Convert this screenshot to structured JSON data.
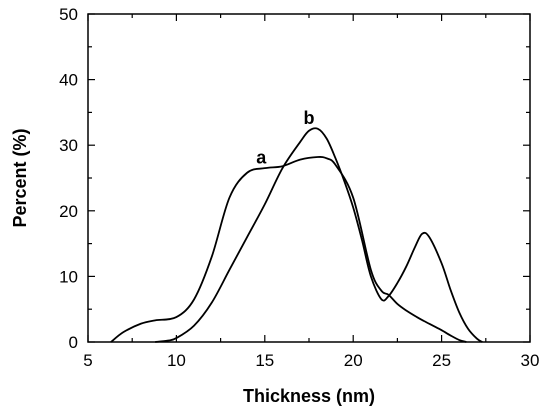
{
  "chart_data": {
    "type": "line",
    "title": "",
    "xlabel": "Thickness (nm)",
    "ylabel": "Percent (%)",
    "xlim": [
      5,
      30
    ],
    "ylim": [
      0,
      50
    ],
    "xticks": [
      5,
      10,
      15,
      20,
      25,
      30
    ],
    "yticks": [
      0,
      10,
      20,
      30,
      40,
      50
    ],
    "grid": false,
    "series": [
      {
        "name": "a",
        "color": "#000000",
        "label_at": [
          14.8,
          27.2
        ],
        "x": [
          6.3,
          7,
          8,
          8.8,
          10,
          11,
          12,
          13,
          14,
          15,
          16,
          17,
          18,
          18.5,
          19,
          20,
          21,
          21.6,
          22,
          22.5,
          23,
          23.6,
          24,
          24.5,
          25,
          25.5,
          26,
          26.4
        ],
        "y": [
          0,
          1.5,
          2.8,
          3.3,
          3.8,
          6.5,
          13,
          22,
          25.8,
          26.5,
          26.8,
          27.8,
          28.2,
          28,
          27,
          22,
          11,
          7.8,
          7.2,
          5.8,
          4.8,
          3.8,
          3.2,
          2.5,
          1.8,
          1,
          0.3,
          0
        ]
      },
      {
        "name": "b",
        "color": "#000000",
        "label_at": [
          17.5,
          33.2
        ],
        "x": [
          8.8,
          9.5,
          10,
          11,
          12,
          13,
          14,
          15,
          16,
          17,
          17.5,
          18,
          18.5,
          19,
          19.5,
          20,
          20.5,
          21,
          21.6,
          22,
          22.5,
          23,
          23.5,
          23.9,
          24.3,
          25,
          25.5,
          26,
          26.5,
          27,
          27.3
        ],
        "y": [
          0,
          0.2,
          0.6,
          2.5,
          6,
          11,
          16,
          21,
          26.5,
          30.5,
          32.2,
          32.5,
          31,
          28,
          24.5,
          20.5,
          15.5,
          10,
          6.5,
          7,
          9,
          11.5,
          14.5,
          16.5,
          16,
          12,
          8,
          4.5,
          2,
          0.5,
          0
        ]
      }
    ]
  }
}
